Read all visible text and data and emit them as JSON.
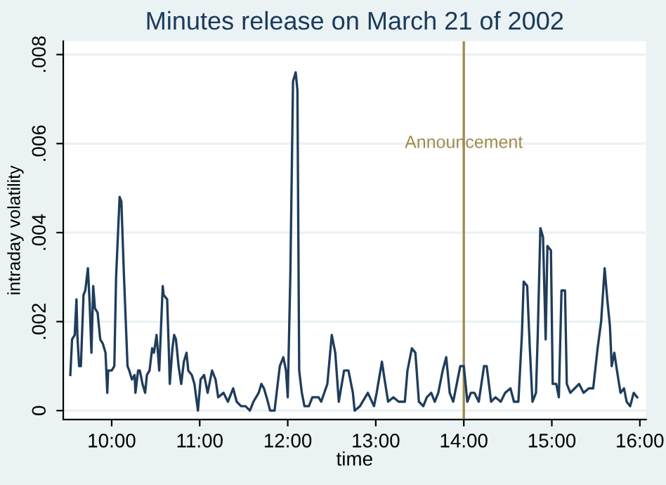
{
  "chart_data": {
    "type": "line",
    "title": "Minutes release on March 21 of 2002",
    "xlabel": "time",
    "ylabel": "intraday volatility",
    "x": [
      9.53,
      9.55,
      9.58,
      9.6,
      9.61,
      9.63,
      9.65,
      9.68,
      9.7,
      9.73,
      9.75,
      9.77,
      9.79,
      9.81,
      9.84,
      9.87,
      9.9,
      9.93,
      9.95,
      9.96,
      10.0,
      10.03,
      10.05,
      10.09,
      10.11,
      10.14,
      10.18,
      10.2,
      10.23,
      10.26,
      10.27,
      10.3,
      10.32,
      10.35,
      10.38,
      10.4,
      10.43,
      10.46,
      10.48,
      10.51,
      10.54,
      10.58,
      10.59,
      10.63,
      10.65,
      10.66,
      10.69,
      10.71,
      10.73,
      10.76,
      10.79,
      10.82,
      10.85,
      10.87,
      10.91,
      10.94,
      10.98,
      11.01,
      11.05,
      11.09,
      11.14,
      11.18,
      11.21,
      11.27,
      11.32,
      11.38,
      11.42,
      11.47,
      11.52,
      11.57,
      11.61,
      11.67,
      11.7,
      11.73,
      11.76,
      11.8,
      11.85,
      11.91,
      11.95,
      11.98,
      12.0,
      12.03,
      12.06,
      12.09,
      12.11,
      12.13,
      12.16,
      12.19,
      12.24,
      12.28,
      12.35,
      12.38,
      12.45,
      12.5,
      12.54,
      12.58,
      12.64,
      12.69,
      12.74,
      12.76,
      12.82,
      12.91,
      12.98,
      13.01,
      13.07,
      13.1,
      13.14,
      13.2,
      13.26,
      13.33,
      13.36,
      13.41,
      13.45,
      13.49,
      13.54,
      13.58,
      13.63,
      13.67,
      13.71,
      13.76,
      13.8,
      13.84,
      13.88,
      13.92,
      13.96,
      14.0,
      14.04,
      14.08,
      14.12,
      14.17,
      14.23,
      14.26,
      14.31,
      14.36,
      14.42,
      14.47,
      14.53,
      14.57,
      14.62,
      14.66,
      14.68,
      14.72,
      14.75,
      14.78,
      14.82,
      14.84,
      14.87,
      14.9,
      14.93,
      14.95,
      14.99,
      15.01,
      15.05,
      15.08,
      15.11,
      15.15,
      15.17,
      15.21,
      15.26,
      15.31,
      15.36,
      15.42,
      15.47,
      15.52,
      15.56,
      15.6,
      15.63,
      15.66,
      15.68,
      15.71,
      15.74,
      15.78,
      15.82,
      15.85,
      15.89,
      15.93,
      15.97
    ],
    "series": [
      {
        "color": "#1f3d5c",
        "values": [
          0.0008,
          0.0016,
          0.0017,
          0.0025,
          0.0017,
          0.001,
          0.001,
          0.0026,
          0.0027,
          0.0032,
          0.0024,
          0.0013,
          0.0028,
          0.0023,
          0.0022,
          0.0016,
          0.0015,
          0.0013,
          0.0004,
          0.0009,
          0.0009,
          0.001,
          0.003,
          0.0048,
          0.0047,
          0.003,
          0.001,
          0.0009,
          0.0007,
          0.0008,
          0.0004,
          0.0009,
          0.0009,
          0.0006,
          0.0004,
          0.0008,
          0.0009,
          0.0014,
          0.0013,
          0.0017,
          0.0009,
          0.0028,
          0.0026,
          0.0025,
          0.0013,
          0.0006,
          0.0014,
          0.0017,
          0.0016,
          0.001,
          0.0006,
          0.0011,
          0.0013,
          0.0009,
          0.0008,
          0.0006,
          0.0,
          0.0007,
          0.0008,
          0.0004,
          0.0009,
          0.0007,
          0.0003,
          0.0004,
          0.0002,
          0.0005,
          0.0002,
          0.0001,
          0.0001,
          0.0,
          0.0002,
          0.0004,
          0.0006,
          0.0005,
          0.0003,
          0.0,
          0.0,
          0.001,
          0.0012,
          0.0009,
          0.0003,
          0.0031,
          0.0074,
          0.0076,
          0.0072,
          0.0009,
          0.0004,
          0.0001,
          0.0001,
          0.0003,
          0.0003,
          0.0002,
          0.0006,
          0.0017,
          0.0013,
          0.0002,
          0.0009,
          0.0009,
          0.0004,
          0.0,
          0.0001,
          0.0004,
          0.0001,
          0.0004,
          0.0011,
          0.0007,
          0.0002,
          0.0003,
          0.0002,
          0.0002,
          0.0009,
          0.0014,
          0.0013,
          0.0002,
          0.0001,
          0.0003,
          0.0004,
          0.0002,
          0.0004,
          0.0009,
          0.0012,
          0.0004,
          0.0002,
          0.0006,
          0.001,
          0.001,
          0.0002,
          0.0004,
          0.0004,
          0.0002,
          0.001,
          0.001,
          0.0002,
          0.0003,
          0.0002,
          0.0004,
          0.0005,
          0.0002,
          0.0002,
          0.0017,
          0.0029,
          0.0028,
          0.0014,
          0.0002,
          0.0004,
          0.0017,
          0.0041,
          0.0039,
          0.0016,
          0.0037,
          0.0036,
          0.0006,
          0.0006,
          0.0003,
          0.0027,
          0.0027,
          0.0006,
          0.0004,
          0.0005,
          0.0006,
          0.0004,
          0.0005,
          0.0005,
          0.0014,
          0.002,
          0.0032,
          0.0025,
          0.0019,
          0.001,
          0.0013,
          0.0009,
          0.0004,
          0.0005,
          0.0002,
          0.0001,
          0.0004,
          0.0003
        ]
      }
    ],
    "xlim": [
      9.45,
      16.07
    ],
    "xticks": [
      {
        "value": 10,
        "label": "10:00"
      },
      {
        "value": 11,
        "label": "11:00"
      },
      {
        "value": 12,
        "label": "12:00"
      },
      {
        "value": 13,
        "label": "13:00"
      },
      {
        "value": 14,
        "label": "14:00"
      },
      {
        "value": 15,
        "label": "15:00"
      },
      {
        "value": 16,
        "label": "16:00"
      }
    ],
    "ylim": [
      -0.0002,
      0.0083
    ],
    "yticks": [
      0,
      {
        "value": 0.002,
        "label": ".002"
      },
      {
        "value": 0.004,
        "label": ".004"
      },
      {
        "value": 0.006,
        "label": ".006"
      },
      {
        "value": 0.008,
        "label": ".008"
      }
    ],
    "grid": "y",
    "line_style": "solid",
    "ref_lines": [
      {
        "axis": "x",
        "value": 14,
        "label": "Announcement",
        "color": "#a08a4c"
      }
    ]
  }
}
